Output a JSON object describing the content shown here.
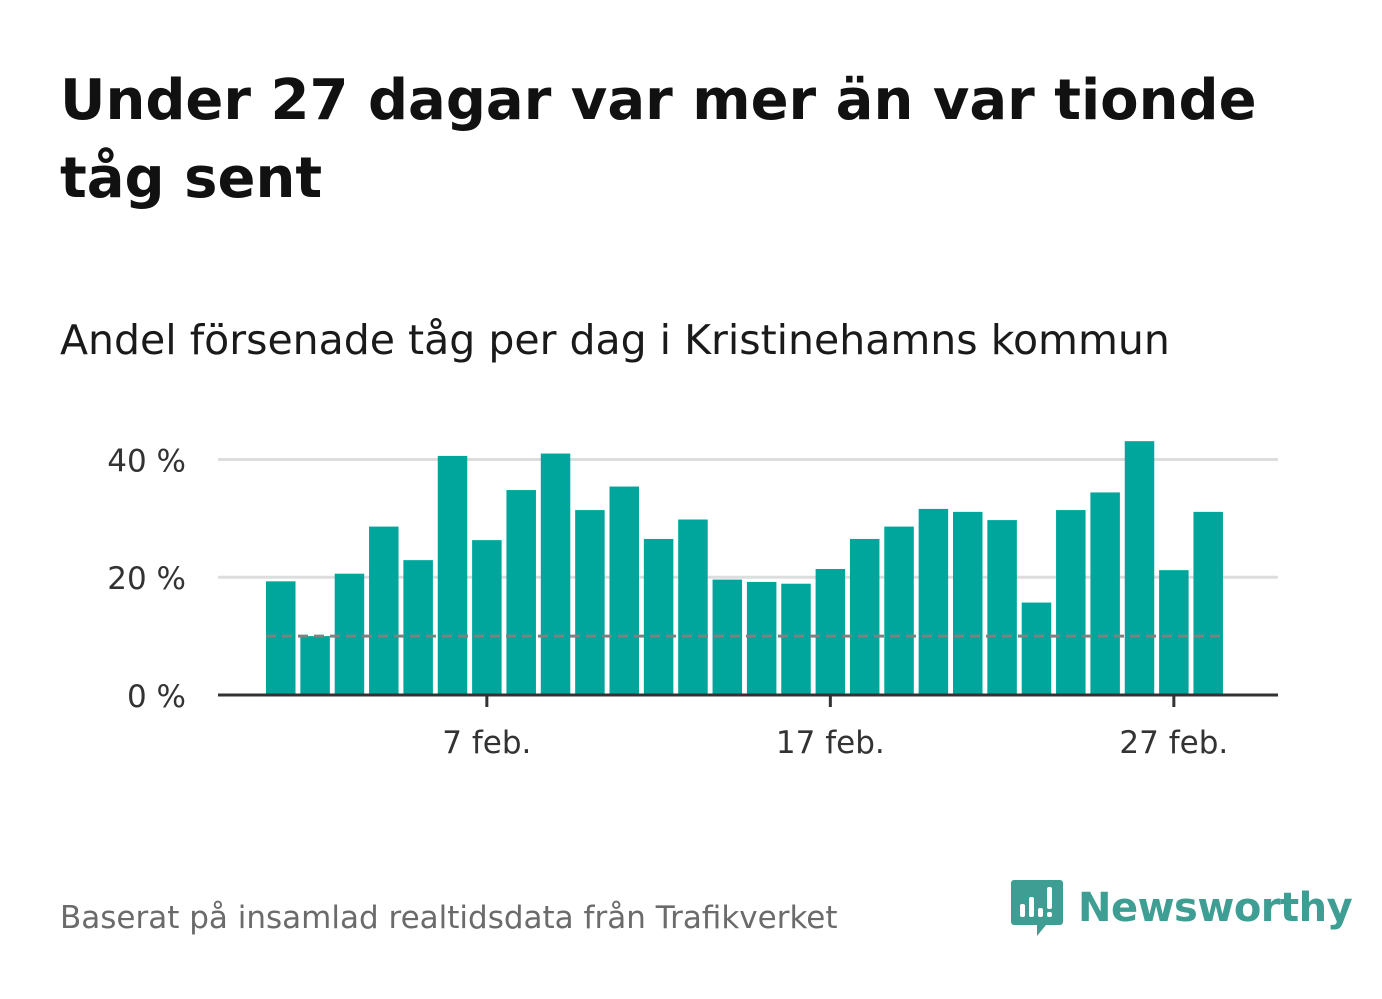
{
  "title": "Under 27 dagar var mer än var tionde tåg sent",
  "subtitle": "Andel försenade tåg per dag i Kristinehamns kommun",
  "source": "Baserat på insamlad realtidsdata från Trafikverket",
  "brand": {
    "name": "Newsworthy",
    "color": "#3f9e93",
    "icon": "newsworthy-logo-icon"
  },
  "colors": {
    "bar": "#00a69c",
    "threshold": "#808080",
    "grid": "#dddddd",
    "axis": "#333333"
  },
  "chart_data": {
    "type": "bar",
    "x_unit": "date",
    "x": [
      "2024-02-01",
      "2024-02-02",
      "2024-02-03",
      "2024-02-04",
      "2024-02-05",
      "2024-02-06",
      "2024-02-07",
      "2024-02-08",
      "2024-02-09",
      "2024-02-10",
      "2024-02-11",
      "2024-02-12",
      "2024-02-13",
      "2024-02-14",
      "2024-02-15",
      "2024-02-16",
      "2024-02-17",
      "2024-02-18",
      "2024-02-19",
      "2024-02-20",
      "2024-02-21",
      "2024-02-22",
      "2024-02-23",
      "2024-02-24",
      "2024-02-25",
      "2024-02-26",
      "2024-02-27",
      "2024-02-28",
      "2024-02-29"
    ],
    "values": [
      19.3,
      10.0,
      20.6,
      28.6,
      22.9,
      40.6,
      26.3,
      34.8,
      41.0,
      31.4,
      35.4,
      26.5,
      29.8,
      19.6,
      19.2,
      18.9,
      21.4,
      26.5,
      28.6,
      31.6,
      31.1,
      29.7,
      15.7,
      31.4,
      34.4,
      43.1,
      21.2,
      31.1,
      0
    ],
    "threshold": 10,
    "ylim": [
      0,
      45
    ],
    "y_ticks": [
      0,
      20,
      40
    ],
    "y_tick_labels": [
      "0 %",
      "20 %",
      "40 %"
    ],
    "x_ticks": [
      "2024-02-07",
      "2024-02-17",
      "2024-02-27"
    ],
    "x_tick_labels": [
      "7 feb.",
      "17 feb.",
      "27 feb."
    ],
    "grid": true,
    "xlabel": "",
    "ylabel": ""
  }
}
